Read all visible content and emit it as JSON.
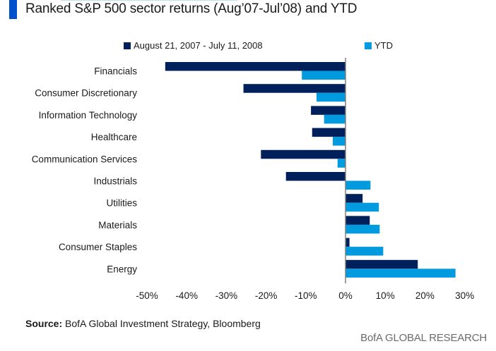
{
  "header": {
    "title": "Ranked S&P 500 sector returns (Aug’07-Jul’08) and YTD"
  },
  "footer": {
    "source_label": "Source:",
    "source_text": " BofA Global Investment Strategy, Bloomberg",
    "brand": "BofA GLOBAL RESEARCH"
  },
  "colors": {
    "accent": "#0052cc",
    "series_dark": "#00205b",
    "series_light": "#009ade",
    "axis": "#7f7f7f"
  },
  "chart_data": {
    "type": "bar",
    "orientation": "horizontal",
    "title": "Ranked S&P 500 sector returns (Aug’07-Jul’08) and YTD",
    "xlabel": "",
    "ylabel": "",
    "xlim": [
      -50,
      30
    ],
    "x_ticks": [
      -50,
      -40,
      -30,
      -20,
      -10,
      0,
      10,
      20,
      30
    ],
    "x_tick_labels": [
      "-50%",
      "-40%",
      "-30%",
      "-20%",
      "-10%",
      "0%",
      "10%",
      "20%",
      "30%"
    ],
    "grid": false,
    "legend_position": "top",
    "categories": [
      "Financials",
      "Consumer Discretionary",
      "Information Technology",
      "Healthcare",
      "Communication Services",
      "Industrials",
      "Utilities",
      "Materials",
      "Consumer Staples",
      "Energy"
    ],
    "series": [
      {
        "name": "August 21, 2007 - July 11, 2008",
        "color": "#00205b",
        "values": [
          -45.4,
          -25.7,
          -8.7,
          -8.4,
          -21.3,
          -15.0,
          4.3,
          6.1,
          1.0,
          18.2
        ]
      },
      {
        "name": "YTD",
        "color": "#009ade",
        "values": [
          -11.0,
          -7.3,
          -5.4,
          -3.2,
          -2.0,
          6.3,
          8.4,
          8.6,
          9.5,
          27.7
        ]
      }
    ]
  }
}
